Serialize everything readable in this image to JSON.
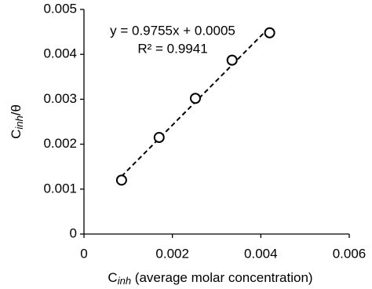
{
  "chart_data": {
    "type": "scatter",
    "x_label": {
      "main": "C",
      "sub": "inh",
      "rest": " (average molar concentration)"
    },
    "y_label": {
      "main": "C",
      "sub": "inh",
      "rest": "/θ"
    },
    "equation": "y = 0.9755x + 0.0005",
    "r_squared": "R² = 0.9941",
    "series": [
      {
        "color": "#000000",
        "x": [
          0.00085,
          0.0017,
          0.00252,
          0.00335,
          0.0042
        ],
        "values": [
          0.0012,
          0.00215,
          0.00302,
          0.00387,
          0.00448
        ]
      }
    ],
    "xlim": [
      0,
      0.006
    ],
    "xticks": [
      0,
      0.002,
      0.004,
      0.006
    ],
    "ylim": [
      0,
      0.005
    ],
    "yticks": [
      0,
      0.001,
      0.002,
      0.003,
      0.004,
      0.005
    ],
    "trendline": true,
    "grid": false
  }
}
